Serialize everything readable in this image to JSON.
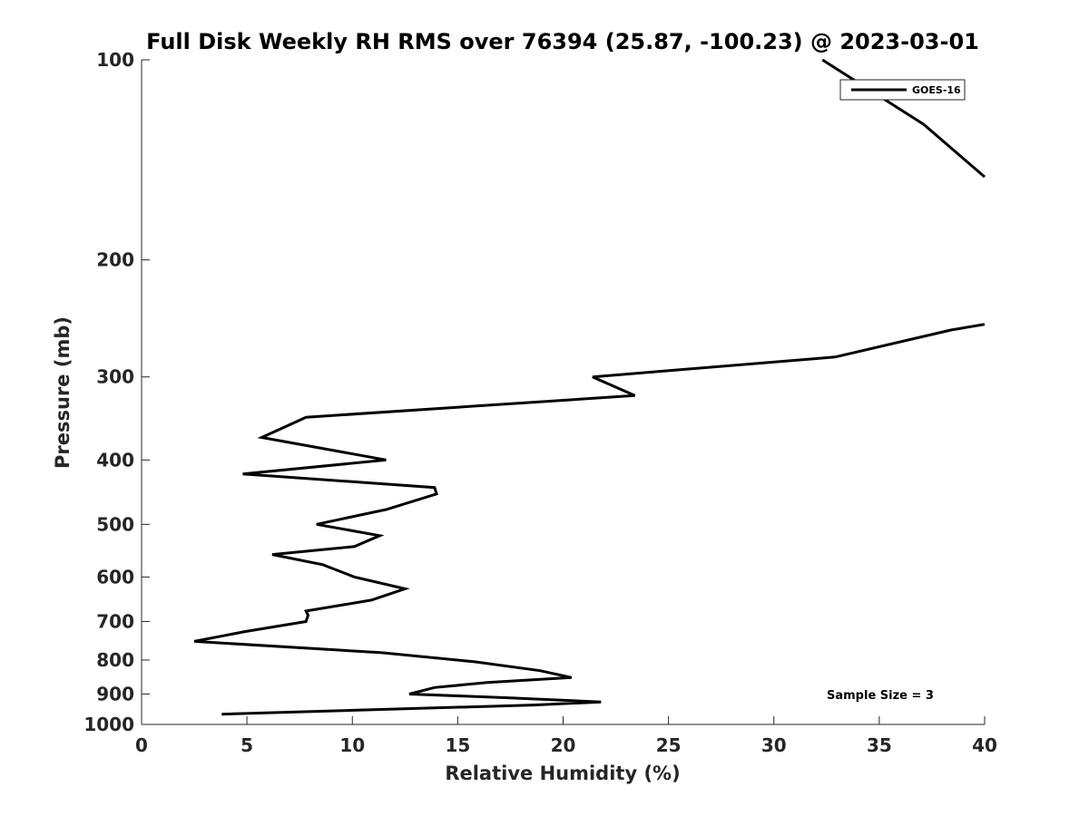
{
  "chart_data": {
    "type": "line",
    "title": "Full Disk Weekly RH RMS over 76394 (25.87, -100.23) @ 2023-03-01",
    "xlabel": "Relative Humidity (%)",
    "ylabel": "Pressure (mb)",
    "xlim": [
      0,
      40
    ],
    "ylim": [
      100,
      1000
    ],
    "y_scale": "log",
    "y_reversed": true,
    "x_ticks": [
      0,
      5,
      10,
      15,
      20,
      25,
      30,
      35,
      40
    ],
    "y_ticks": [
      100,
      200,
      300,
      400,
      500,
      600,
      700,
      800,
      900,
      1000
    ],
    "grid": false,
    "legend_position": "top-right",
    "annotation": "Sample Size = 3",
    "series": [
      {
        "name": "GOES-16",
        "color": "#000000",
        "segments": [
          {
            "x": [
              32.3,
              37.1,
              40.0
            ],
            "y": [
              100,
              125,
              150
            ]
          },
          {
            "x": [
              40.0,
              38.4,
              32.9,
              21.4,
              23.4,
              7.8,
              5.7,
              11.6,
              4.8,
              13.9,
              14.0,
              11.6,
              8.3,
              11.3,
              10.1,
              6.2,
              8.6,
              10.1,
              12.5,
              10.9,
              7.8,
              7.9,
              7.8,
              4.9,
              2.5,
              11.4,
              15.8,
              18.9,
              20.4,
              16.4,
              13.9,
              12.7,
              17.5,
              21.8,
              18.6,
              3.8
            ],
            "y": [
              250,
              255,
              280,
              300,
              320,
              345,
              370,
              400,
              420,
              440,
              450,
              475,
              500,
              520,
              540,
              555,
              575,
              600,
              625,
              650,
              675,
              685,
              700,
              725,
              750,
              780,
              805,
              830,
              850,
              865,
              880,
              900,
              912,
              925,
              935,
              965
            ]
          }
        ]
      }
    ]
  }
}
